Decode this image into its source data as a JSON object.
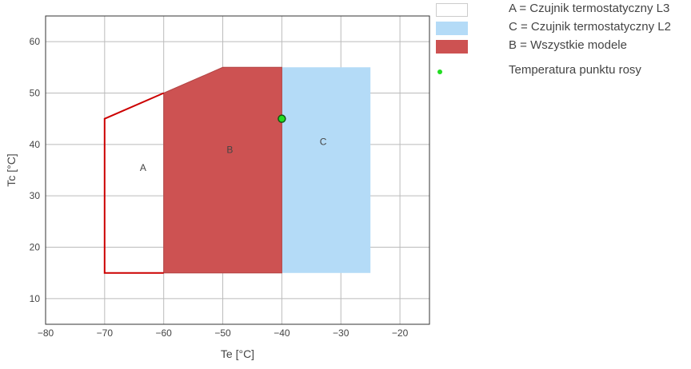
{
  "chart_data": {
    "type": "area",
    "xlabel": "Te [°C]",
    "ylabel": "Tc [°C]",
    "xlim": [
      -80,
      -15
    ],
    "ylim": [
      5,
      65
    ],
    "xticks": [
      -80,
      -70,
      -60,
      -50,
      -40,
      -30,
      -20
    ],
    "yticks": [
      10,
      20,
      30,
      40,
      50,
      60
    ],
    "xtick_labels": [
      "−80",
      "−70",
      "−60",
      "−50",
      "−40",
      "−30",
      "−20"
    ],
    "ytick_labels": [
      "10",
      "20",
      "30",
      "40",
      "50",
      "60"
    ],
    "grid": true,
    "legend_position": "right",
    "series": [
      {
        "key": "C",
        "name": "C = Czujnik termostatyczny L2",
        "label": "C",
        "kind": "filled-polygon",
        "fill": "#b4dbf7",
        "stroke": "none",
        "points": [
          [
            -40,
            15
          ],
          [
            -25,
            15
          ],
          [
            -25,
            55
          ],
          [
            -40,
            55
          ]
        ],
        "label_at": [
          -33,
          40.5
        ]
      },
      {
        "key": "B",
        "name": "B = Wszystkie modele",
        "label": "B",
        "kind": "filled-polygon",
        "fill": "#cd5252",
        "stroke": "#b34444",
        "points": [
          [
            -60,
            15
          ],
          [
            -40,
            15
          ],
          [
            -40,
            55
          ],
          [
            -50,
            55
          ],
          [
            -60,
            50
          ]
        ],
        "label_at": [
          -48.8,
          39
        ]
      },
      {
        "key": "A",
        "name": "A = Czujnik termostatyczny L3",
        "label": "A",
        "kind": "outline-polygon",
        "fill": "none",
        "stroke": "#cc0000",
        "points": [
          [
            -60,
            15
          ],
          [
            -70,
            15
          ],
          [
            -70,
            45
          ],
          [
            -60,
            50
          ]
        ],
        "label_at": [
          -63.5,
          35.5
        ]
      },
      {
        "key": "dew",
        "name": "Temperatura punktu rosy",
        "kind": "point",
        "fill": "#22dd22",
        "stroke": "#115511",
        "points": [
          [
            -40,
            45
          ]
        ]
      }
    ]
  },
  "legend": [
    {
      "label": "A = Czujnik termostatyczny L3",
      "swatch": "box",
      "fill": "#ffffff",
      "border": "#cccccc"
    },
    {
      "label": "C = Czujnik termostatyczny L2",
      "swatch": "box",
      "fill": "#b4dbf7",
      "border": "#b4dbf7"
    },
    {
      "label": "B = Wszystkie modele",
      "swatch": "box",
      "fill": "#cd5252",
      "border": "#cd5252"
    },
    {
      "label": "Temperatura punktu rosy",
      "swatch": "dot",
      "fill": "#22dd22",
      "border": "#22dd22"
    }
  ]
}
